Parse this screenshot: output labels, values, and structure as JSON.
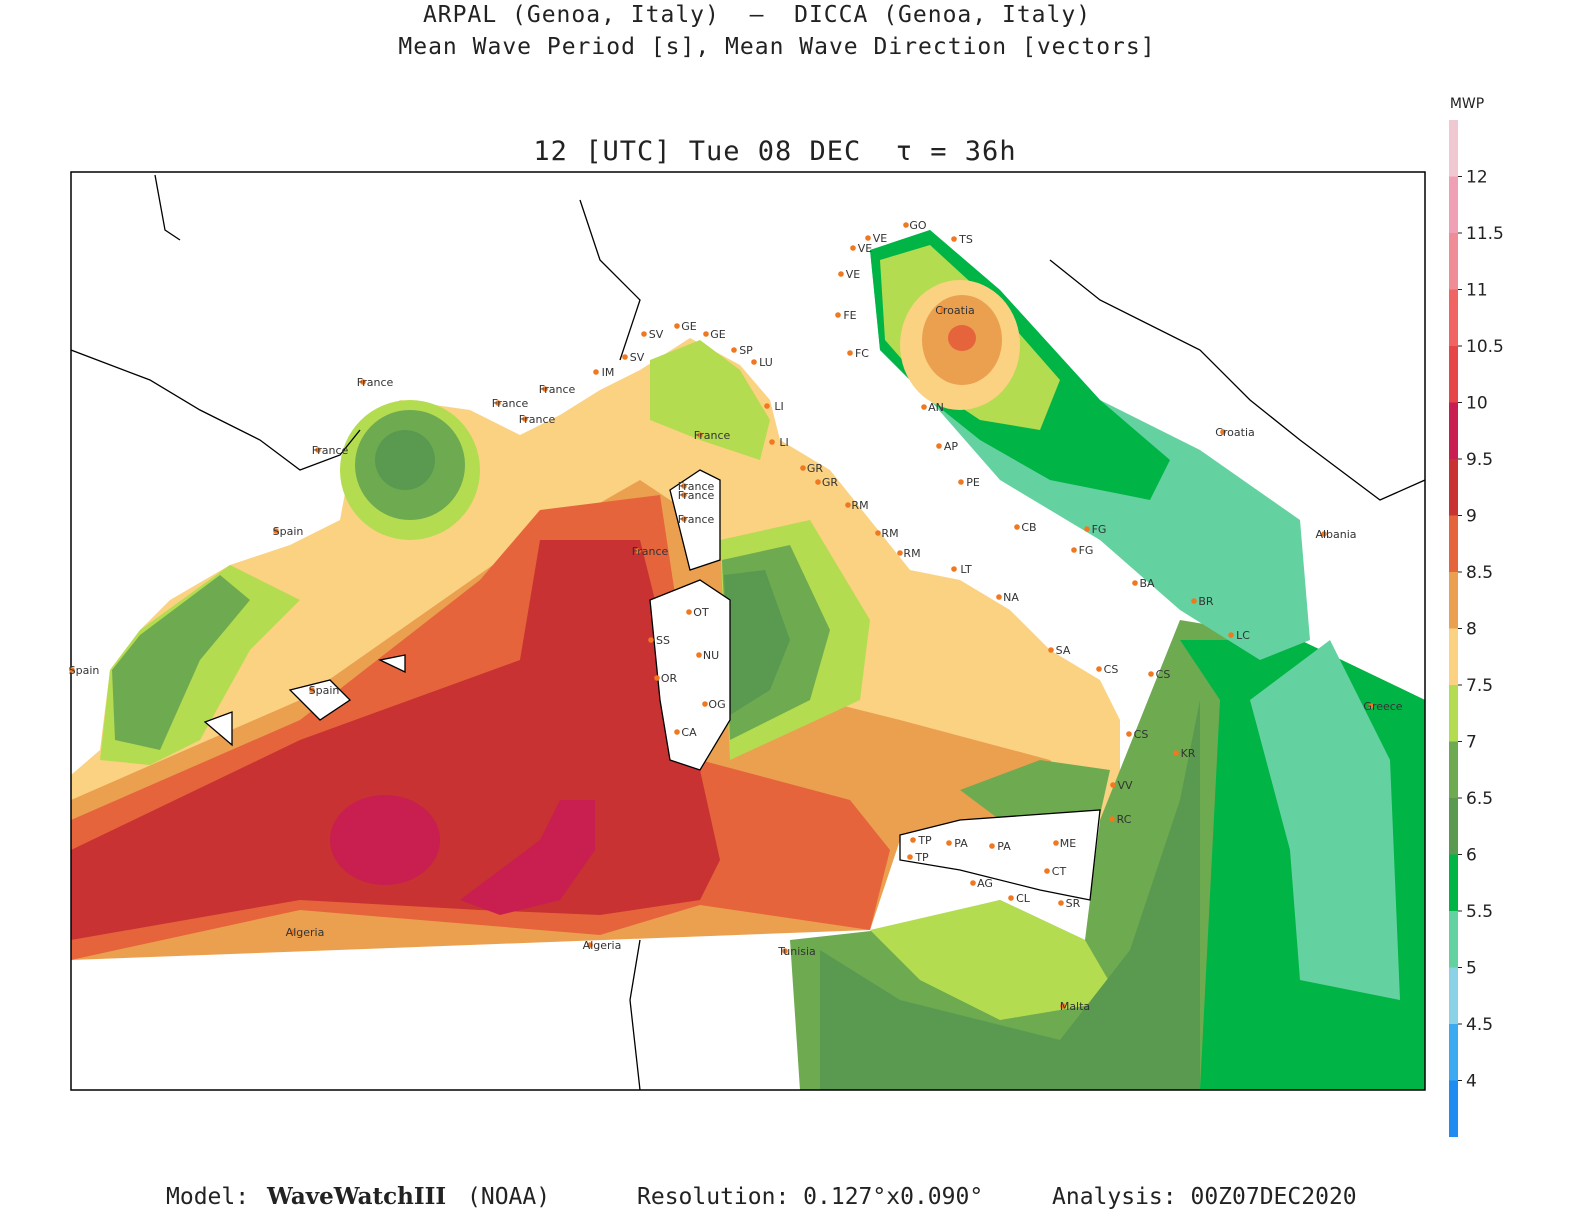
{
  "header": {
    "line1": "ARPAL (Genoa, Italy)  —  DICCA (Genoa, Italy)",
    "line2": "Mean Wave Period [s], Mean Wave Direction [vectors]",
    "time": "12 [UTC] Tue 08 DEC  τ = 36h"
  },
  "colorbar": {
    "title": "MWP",
    "range": [
      3.5,
      12.5
    ],
    "ticks": [
      4,
      4.5,
      5,
      5.5,
      6,
      6.5,
      7,
      7.5,
      8,
      8.5,
      9,
      9.5,
      10,
      10.5,
      11,
      11.5,
      12
    ],
    "colors": [
      "#1e8cf0",
      "#3caaf0",
      "#8cd2e6",
      "#64d2a0",
      "#00b446",
      "#5a9a50",
      "#6eaa50",
      "#b4dc50",
      "#fad282",
      "#eba050",
      "#e6643c",
      "#c83232",
      "#c81e50",
      "#e64646",
      "#f06464",
      "#f08c96",
      "#f0a0b4",
      "#f0c8d2"
    ]
  },
  "map": {
    "labels": [
      "France",
      "France",
      "France",
      "France",
      "France",
      "Spain",
      "Spain",
      "Spain",
      "Algeria",
      "Algeria",
      "Tunisia",
      "IM",
      "SV",
      "SV",
      "GE",
      "GE",
      "SP",
      "LU",
      "LI",
      "LI",
      "France",
      "GR",
      "GR",
      "RM",
      "RM",
      "RM",
      "LT",
      "NA",
      "SA",
      "CS",
      "CS",
      "VV",
      "RC",
      "ME",
      "CT",
      "SR",
      "PA",
      "PA",
      "TP",
      "TP",
      "AG",
      "CL",
      "Malta",
      "France",
      "France",
      "France",
      "France",
      "OT",
      "SS",
      "NU",
      "OR",
      "OG",
      "CA",
      "VE",
      "VE",
      "VE",
      "GO",
      "TS",
      "FE",
      "FC",
      "AN",
      "AP",
      "PE",
      "CB",
      "FG",
      "FG",
      "BA",
      "BR",
      "LC",
      "Croatia",
      "Croatia",
      "Albania",
      "Greece",
      "CS",
      "KR"
    ]
  },
  "footer": {
    "model_label": "Model:",
    "model": "WaveWatchIII",
    "model_source": "(NOAA)",
    "resolution": "Resolution: 0.127°x0.090°",
    "analysis": "Analysis: 00Z07DEC2020"
  }
}
